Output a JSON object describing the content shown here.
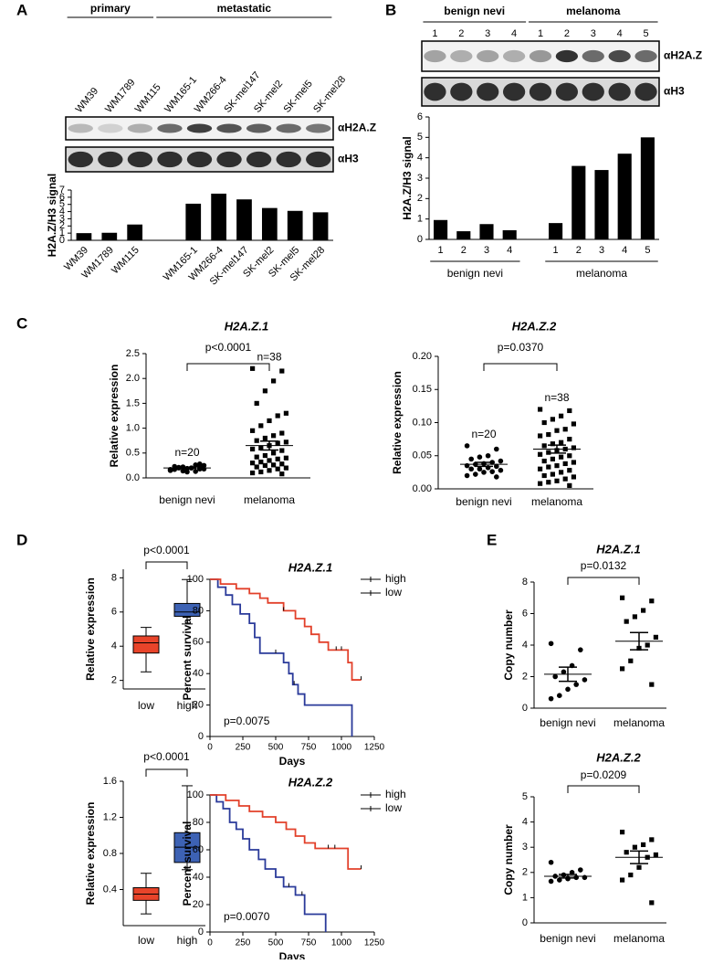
{
  "chart_data": [
    {
      "panel": "A",
      "type": "bar",
      "group_labels": [
        "primary",
        "metastatic"
      ],
      "blot_labels": [
        "αH2A.Z",
        "αH3"
      ],
      "ylabel": "H2A.Z/H3 signal",
      "categories": [
        "WM39",
        "WM1789",
        "WM115",
        "WM165-1",
        "WM266-4",
        "SK-mel147",
        "SK-mel2",
        "SK-mel5",
        "SK-mel28"
      ],
      "values": [
        1,
        1.05,
        2.2,
        5.1,
        6.5,
        5.7,
        4.5,
        4.1,
        3.9
      ],
      "color": "#000000",
      "ylim": [
        0,
        7
      ],
      "yticks": [
        0,
        1,
        2,
        3,
        4,
        5,
        6,
        7
      ]
    },
    {
      "panel": "B",
      "type": "bar",
      "group_labels": [
        "benign nevi",
        "melanoma"
      ],
      "blot_labels": [
        "αH2A.Z",
        "αH3"
      ],
      "ylabel": "H2A.Z/H3 signal",
      "categories": [
        "1",
        "2",
        "3",
        "4",
        "1",
        "2",
        "3",
        "4",
        "5"
      ],
      "values": [
        0.95,
        0.4,
        0.75,
        0.45,
        0.8,
        3.6,
        3.4,
        4.2,
        5.0
      ],
      "color": "#000000",
      "ylim": [
        0,
        6
      ],
      "yticks": [
        0,
        1,
        2,
        3,
        4,
        5,
        6
      ]
    },
    {
      "panel": "C",
      "type": "strip",
      "title": "H2A.Z.1",
      "ylabel": "Relative expression",
      "categories": [
        "benign nevi",
        "melanoma"
      ],
      "values": [
        [
          0.15,
          0.18,
          0.2,
          0.22,
          0.17,
          0.25,
          0.13,
          0.19,
          0.21,
          0.16,
          0.28,
          0.2,
          0.14,
          0.23,
          0.18,
          0.26,
          0.12,
          0.2,
          0.17,
          0.22
        ],
        [
          2.2,
          2.15,
          1.95,
          1.75,
          1.5,
          1.3,
          1.25,
          1.15,
          1.05,
          0.95,
          0.9,
          0.85,
          0.8,
          0.75,
          0.72,
          0.7,
          0.65,
          0.6,
          0.58,
          0.55,
          0.5,
          0.45,
          0.42,
          0.4,
          0.38,
          0.35,
          0.32,
          0.3,
          0.28,
          0.26,
          0.25,
          0.22,
          0.2,
          0.18,
          0.15,
          0.12,
          0.1,
          0.08
        ]
      ],
      "means": [
        0.2,
        0.65
      ],
      "errors": [
        0.01,
        0.09
      ],
      "markers": [
        "circle",
        "square"
      ],
      "annotations": [
        "n=20",
        "n=38"
      ],
      "p_value": "p<0.0001",
      "color": "#000000",
      "ylim": [
        0,
        2.5
      ],
      "yticks": [
        {
          "value": 0,
          "label": "0.0"
        },
        0.5,
        {
          "value": 1,
          "label": "1.0"
        },
        1.5,
        {
          "value": 2,
          "label": "2.0"
        },
        2.5
      ]
    },
    {
      "type": "strip",
      "title": "H2A.Z.2",
      "ylabel": "Relative expression",
      "categories": [
        "benign nevi",
        "melanoma"
      ],
      "values": [
        [
          0.065,
          0.06,
          0.05,
          0.048,
          0.045,
          0.042,
          0.04,
          0.038,
          0.037,
          0.035,
          0.034,
          0.032,
          0.03,
          0.03,
          0.028,
          0.026,
          0.025,
          0.022,
          0.02,
          0.018
        ],
        [
          0.12,
          0.118,
          0.11,
          0.105,
          0.1,
          0.098,
          0.09,
          0.088,
          0.082,
          0.08,
          0.075,
          0.07,
          0.068,
          0.065,
          0.062,
          0.06,
          0.058,
          0.055,
          0.052,
          0.05,
          0.048,
          0.045,
          0.042,
          0.04,
          0.038,
          0.035,
          0.033,
          0.03,
          0.028,
          0.025,
          0.022,
          0.02,
          0.018,
          0.015,
          0.012,
          0.01,
          0.008,
          0.005
        ]
      ],
      "means": [
        0.037,
        0.06
      ],
      "errors": [
        0.003,
        0.006
      ],
      "markers": [
        "circle",
        "square"
      ],
      "annotations": [
        "n=20",
        "n=38"
      ],
      "p_value": "p=0.0370",
      "color": "#000000",
      "ylim": [
        0,
        0.2
      ],
      "yticks": [
        {
          "value": 0,
          "label": "0.00"
        },
        0.05,
        {
          "value": 0.1,
          "label": "0.10"
        },
        0.15,
        {
          "value": 0.2,
          "label": "0.20"
        }
      ]
    },
    {
      "panel": "D",
      "type": "box",
      "ylabel": "Relative expression",
      "categories": [
        "low",
        "high"
      ],
      "colors": [
        "#e8442a",
        "#3d62b4"
      ],
      "boxes": [
        {
          "min": 2.5,
          "q1": 3.6,
          "median": 4.2,
          "q3": 4.6,
          "max": 5.1
        },
        {
          "min": 5.3,
          "q1": 5.75,
          "median": 6.0,
          "q3": 6.5,
          "max": 7.9
        }
      ],
      "p_value": "p<0.0001",
      "ylim": [
        1.5,
        8.5
      ],
      "yticks": [
        2,
        4,
        6,
        8
      ]
    },
    {
      "type": "survival",
      "title": "H2A.Z.1",
      "xlabel": "Days",
      "ylabel": "Percent survival",
      "p_value": "p=0.0075",
      "legend": "upper right",
      "xlim": [
        0,
        1250
      ],
      "xticks": [
        0,
        250,
        500,
        750,
        1000,
        1250
      ],
      "ylim": [
        0,
        100
      ],
      "yticks": [
        0,
        20,
        40,
        60,
        80,
        100
      ],
      "series": [
        {
          "name": "high",
          "color": "#2a3a9a",
          "x": [
            0,
            60,
            60,
            120,
            120,
            170,
            170,
            230,
            230,
            300,
            300,
            340,
            340,
            380,
            380,
            560,
            560,
            600,
            600,
            630,
            630,
            670,
            670,
            720,
            720,
            1080,
            1080
          ],
          "y": [
            100,
            100,
            95,
            95,
            90,
            90,
            84,
            84,
            78,
            78,
            72,
            72,
            63,
            63,
            53,
            53,
            47,
            47,
            40,
            40,
            33,
            33,
            27,
            27,
            20,
            20,
            0
          ],
          "censored": [
            500,
            640
          ]
        },
        {
          "name": "low",
          "color": "#e2402a",
          "x": [
            0,
            80,
            80,
            200,
            200,
            300,
            300,
            380,
            380,
            440,
            440,
            560,
            560,
            650,
            650,
            720,
            720,
            770,
            770,
            830,
            830,
            900,
            900,
            1050,
            1050,
            1080,
            1080,
            1150
          ],
          "y": [
            100,
            100,
            97,
            97,
            94,
            94,
            91,
            91,
            88,
            88,
            85,
            85,
            80,
            80,
            75,
            75,
            70,
            70,
            65,
            65,
            60,
            60,
            55,
            55,
            47,
            47,
            36,
            36
          ],
          "censored": [
            560,
            960,
            1000,
            1150
          ]
        }
      ]
    },
    {
      "type": "box",
      "ylabel": "Relative expression",
      "categories": [
        "low",
        "high"
      ],
      "colors": [
        "#e8442a",
        "#3d62b4"
      ],
      "boxes": [
        {
          "min": 0.13,
          "q1": 0.28,
          "median": 0.35,
          "q3": 0.42,
          "max": 0.58
        },
        {
          "min": 0.62,
          "q1": 0.7,
          "median": 0.87,
          "q3": 1.03,
          "max": 1.55
        }
      ],
      "p_value": "p<0.0001",
      "ylim": [
        0,
        1.6
      ],
      "yticks": [
        {
          "value": 0.4,
          "label": "0.4"
        },
        {
          "value": 0.8,
          "label": "0.8"
        },
        {
          "value": 1.2,
          "label": "1.2"
        },
        {
          "value": 1.6,
          "label": "1.6"
        }
      ]
    },
    {
      "type": "survival",
      "title": "H2A.Z.2",
      "xlabel": "Days",
      "ylabel": "Percent survival",
      "p_value": "p=0.0070",
      "legend": "upper right",
      "xlim": [
        0,
        1250
      ],
      "xticks": [
        0,
        250,
        500,
        750,
        1000,
        1250
      ],
      "ylim": [
        0,
        100
      ],
      "yticks": [
        0,
        20,
        40,
        60,
        80,
        100
      ],
      "series": [
        {
          "name": "high",
          "color": "#2a3a9a",
          "x": [
            0,
            50,
            50,
            100,
            100,
            150,
            150,
            200,
            200,
            250,
            250,
            300,
            300,
            370,
            370,
            420,
            420,
            500,
            500,
            560,
            560,
            650,
            650,
            720,
            720,
            880,
            880
          ],
          "y": [
            100,
            100,
            95,
            95,
            90,
            90,
            80,
            80,
            75,
            75,
            68,
            68,
            60,
            60,
            53,
            53,
            46,
            46,
            40,
            40,
            33,
            33,
            27,
            27,
            13,
            13,
            0
          ],
          "censored": [
            600,
            700
          ]
        },
        {
          "name": "low",
          "color": "#e2402a",
          "x": [
            0,
            120,
            120,
            220,
            220,
            300,
            300,
            400,
            400,
            500,
            500,
            580,
            580,
            650,
            650,
            720,
            720,
            800,
            800,
            1050,
            1050,
            1150
          ],
          "y": [
            100,
            100,
            96,
            96,
            92,
            92,
            88,
            88,
            84,
            84,
            80,
            80,
            75,
            75,
            70,
            70,
            65,
            65,
            61,
            61,
            46,
            46
          ],
          "censored": [
            900,
            950,
            1150
          ]
        }
      ]
    },
    {
      "panel": "E",
      "type": "strip",
      "title": "H2A.Z.1",
      "ylabel": "Copy number",
      "categories": [
        "benign nevi",
        "melanoma"
      ],
      "values": [
        [
          4.1,
          3.7,
          2.7,
          2.3,
          2.0,
          1.8,
          1.5,
          1.2,
          0.8,
          0.6
        ],
        [
          7.0,
          6.8,
          6.2,
          5.8,
          5.5,
          4.5,
          4.0,
          3.8,
          3.0,
          2.5,
          1.5
        ]
      ],
      "means": [
        2.15,
        4.25
      ],
      "errors": [
        0.45,
        0.55
      ],
      "markers": [
        "circle",
        "square"
      ],
      "p_value": "p=0.0132",
      "color": "#000000",
      "ylim": [
        0,
        8
      ],
      "yticks": [
        0,
        2,
        4,
        6,
        8
      ]
    },
    {
      "type": "strip",
      "title": "H2A.Z.2",
      "ylabel": "Copy number",
      "categories": [
        "benign nevi",
        "melanoma"
      ],
      "values": [
        [
          2.4,
          2.1,
          2.0,
          1.9,
          1.85,
          1.8,
          1.8,
          1.75,
          1.7,
          1.65
        ],
        [
          3.6,
          3.3,
          3.1,
          3.0,
          2.8,
          2.7,
          2.6,
          2.2,
          1.9,
          1.7,
          0.8
        ]
      ],
      "means": [
        1.85,
        2.6
      ],
      "errors": [
        0.07,
        0.25
      ],
      "markers": [
        "circle",
        "square"
      ],
      "p_value": "p=0.0209",
      "color": "#000000",
      "ylim": [
        0,
        5
      ],
      "yticks": [
        0,
        1,
        2,
        3,
        4,
        5
      ]
    }
  ]
}
